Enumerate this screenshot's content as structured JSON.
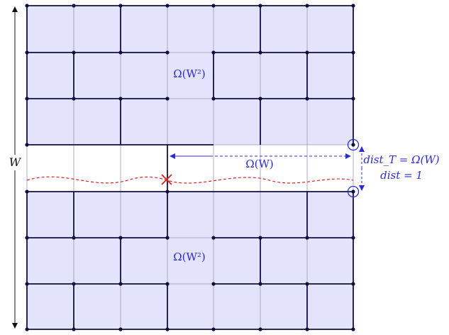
{
  "labels": {
    "width_label": "W",
    "top_region": "Ω(W²)",
    "bottom_region": "Ω(W²)",
    "gap_label": "Ω(W)",
    "dist_t": "dist_T = Ω(W)",
    "dist": "dist = 1"
  },
  "grid": {
    "columns": 7,
    "rows": 7,
    "gap_row": 3
  },
  "colors": {
    "cell_fill": "#e3e3fb",
    "thin_line": "#9a9ab8",
    "thick_line": "#101040",
    "dot": "#101040",
    "accent_blue": "#2b2bd6",
    "red": "#e0201e"
  }
}
